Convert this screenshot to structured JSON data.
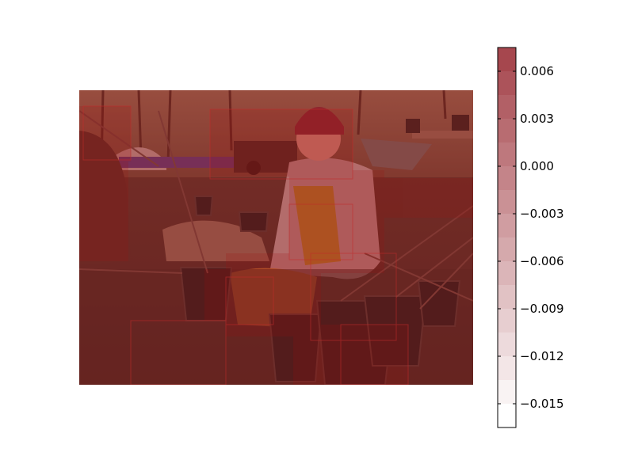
{
  "chart_data": {
    "type": "heatmap",
    "title": "",
    "xlabel": "",
    "ylabel": "",
    "background_image": "photo-woman-kneeling-with-potted-saplings",
    "overlay_color": "#a01010",
    "colorbar": {
      "colormap": [
        "#ffffff",
        "#a6474e"
      ],
      "vmin": -0.0165,
      "vmax": 0.0075,
      "num_bands": 16,
      "ticks": [
        0.006,
        0.003,
        0.0,
        -0.003,
        -0.006,
        -0.009,
        -0.012,
        -0.015
      ],
      "tick_labels": [
        "0.006",
        "0.003",
        "0.000",
        "−0.003",
        "−0.006",
        "−0.009",
        "−0.012",
        "−0.015"
      ]
    }
  }
}
